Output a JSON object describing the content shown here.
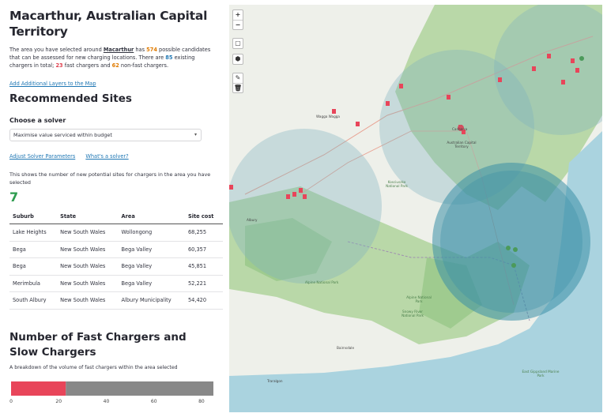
{
  "left": {
    "title": "Macarthur, Australian Capital Territory",
    "intro": {
      "p1": "The area you have selected around ",
      "name": "Macarthur",
      "p2": " has ",
      "candidates": "574",
      "p3": " possible candidates that can be assessed for new charging locations. There are ",
      "existing": "85",
      "p4": " existing chargers in total; ",
      "fast": "23",
      "p5": " fast chargers and ",
      "nonfast": "62",
      "p6": " non-fast chargers."
    },
    "add_layers": "Add Additional Layers to the Map",
    "recommended_heading": "Recommended Sites",
    "solver_label": "Choose a solver",
    "solver_value": "Maximise value serviced within budget",
    "adjust_link": "Adjust Solver Parameters",
    "whats_link": "What's a solver?",
    "sites_desc": "This shows the number of new potential sites for chargers in the area you have selected",
    "sites_count": "7",
    "table": {
      "headers": [
        "Suburb",
        "State",
        "Area",
        "Site cost"
      ],
      "rows": [
        [
          "Lake Heights",
          "New South Wales",
          "Wollongong",
          "68,255"
        ],
        [
          "Bega",
          "New South Wales",
          "Bega Valley",
          "60,357"
        ],
        [
          "Bega",
          "New South Wales",
          "Bega Valley",
          "45,851"
        ],
        [
          "Merimbula",
          "New South Wales",
          "Bega Valley",
          "52,221"
        ],
        [
          "South Albury",
          "New South Wales",
          "Albury Municipality",
          "54,420"
        ]
      ]
    },
    "chart_heading": "Number of Fast Chargers and Slow Chargers",
    "chart_desc": "A breakdown of the volume of fast chargers within the area selected"
  },
  "chart_data": {
    "type": "bar",
    "orientation": "horizontal-stacked",
    "series": [
      {
        "name": "fast",
        "values": [
          23
        ]
      },
      {
        "name": "slow",
        "values": [
          62
        ]
      }
    ],
    "xlim": [
      0,
      85
    ],
    "ticks": [
      "0",
      "20",
      "40",
      "60",
      "80"
    ],
    "legend": [
      "slow",
      "fast"
    ],
    "colors": {
      "slow": "#888888",
      "fast": "#e8455a"
    }
  },
  "map": {
    "zoom_in": "+",
    "zoom_out": "−",
    "labels": {
      "wagga": "Wagga Wagga",
      "canberra": "Canberra",
      "act": "Australian Capital Territory",
      "kosciuszko": "Kosciuszko National Park",
      "alpine1": "Alpine National Park",
      "alpine2": "Alpine National Park",
      "snowy": "Snowy River National Park",
      "bairnsdale": "Bairnsdale",
      "traralgon": "Traralgon",
      "east_gippsland": "East Gippsland Marine Park",
      "albury": "Albury"
    }
  },
  "colors": {
    "accent_green": "#2e9c4f",
    "link_blue": "#1f77b4",
    "fast_red": "#e8455a",
    "slow_grey": "#888888"
  }
}
